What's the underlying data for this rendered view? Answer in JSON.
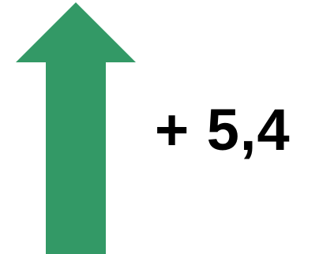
{
  "change": {
    "direction": "up",
    "label": "+ 5,4",
    "arrow_color": "#339966"
  },
  "icons": {
    "arrow": "arrow-up-icon"
  }
}
